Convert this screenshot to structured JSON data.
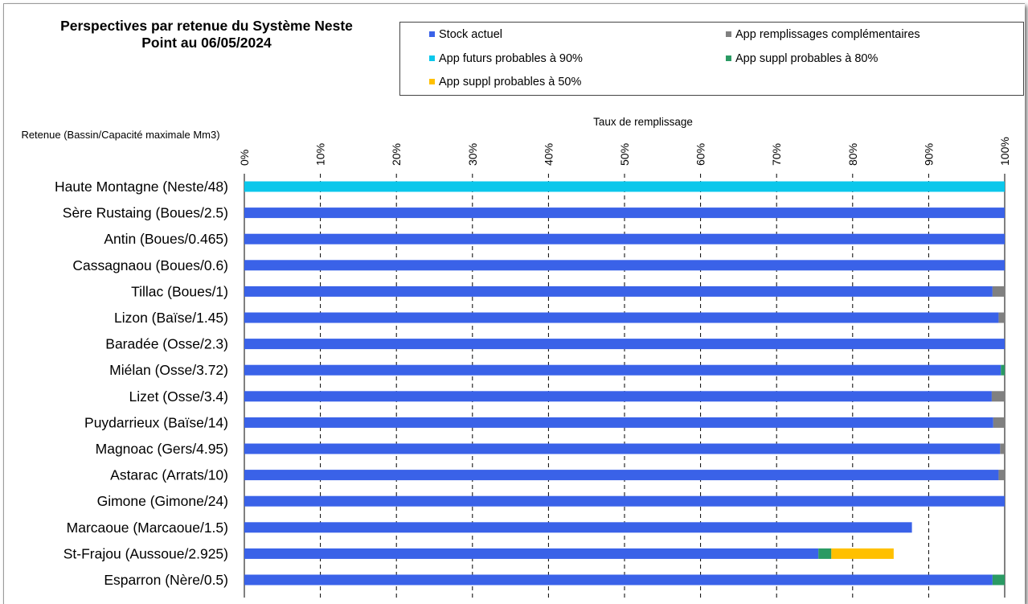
{
  "title_line1": "Perspectives par retenue du Système Neste",
  "title_line2": "Point au 06/05/2024",
  "column_header": "Retenue  (Bassin/Capacité maximale  Mm3)",
  "chart_data": {
    "type": "bar",
    "orientation": "horizontal",
    "stacked": true,
    "xlabel": "Taux de remplissage",
    "xlim": [
      0,
      100
    ],
    "x_ticks": [
      "0%",
      "10%",
      "20%",
      "30%",
      "40%",
      "50%",
      "60%",
      "70%",
      "80%",
      "90%",
      "100%"
    ],
    "grid": "vertical dashed",
    "legend_position": "top",
    "categories": [
      "Haute Montagne (Neste/48)",
      "Sère Rustaing (Boues/2.5)",
      "Antin (Boues/0.465)",
      "Cassagnaou (Boues/0.6)",
      "Tillac (Boues/1)",
      "Lizon (Baïse/1.45)",
      "Baradée (Osse/2.3)",
      "Miélan (Osse/3.72)",
      "Lizet (Osse/3.4)",
      "Puydarrieux (Baïse/14)",
      "Magnoac (Gers/4.95)",
      "Astarac (Arrats/10)",
      "Gimone (Gimone/24)",
      "Marcaoue (Marcaoue/1.5)",
      "St-Frajou (Aussoue/2.925)",
      "Esparron (Nère/0.5)"
    ],
    "series": [
      {
        "name": "Stock actuel",
        "color": "#3a62e8",
        "values": [
          0,
          100,
          100,
          100,
          98.4,
          99.2,
          100,
          99.5,
          98.3,
          98.5,
          99.4,
          99.2,
          100,
          87.8,
          75.5,
          98.4
        ]
      },
      {
        "name": "App remplissages complémentaires",
        "color": "#808080",
        "values": [
          0,
          0,
          0,
          0,
          1.6,
          0.8,
          0,
          0,
          1.7,
          1.5,
          0.6,
          0.8,
          0,
          0,
          0,
          0
        ]
      },
      {
        "name": "App futurs probables à  90%",
        "color": "#0bc7eb",
        "values": [
          100,
          0,
          0,
          0,
          0,
          0,
          0,
          0,
          0,
          0,
          0,
          0,
          0,
          0,
          0,
          0
        ]
      },
      {
        "name": "App suppl probables à  80%",
        "color": "#2a9a63",
        "values": [
          0,
          0,
          0,
          0,
          0,
          0,
          0,
          0.5,
          0,
          0,
          0,
          0,
          0,
          0,
          1.7,
          1.6
        ]
      },
      {
        "name": "App suppl probables à  50%",
        "color": "#ffc000",
        "values": [
          0,
          0,
          0,
          0,
          0,
          0,
          0,
          0,
          0,
          0,
          0,
          0,
          0,
          0,
          8.2,
          0
        ]
      }
    ]
  }
}
